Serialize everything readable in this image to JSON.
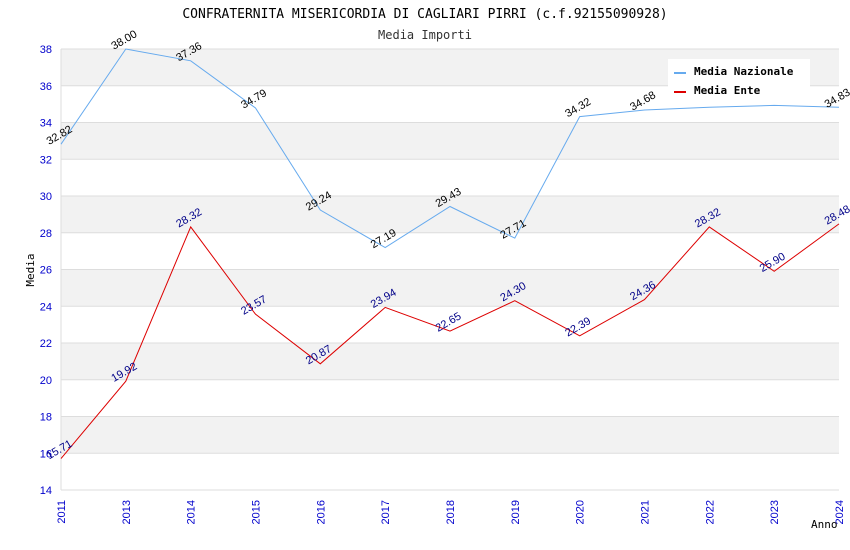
{
  "chart_data": {
    "type": "line",
    "title": "CONFRATERNITA MISERICORDIA DI CAGLIARI PIRRI (c.f.92155090928)",
    "subtitle": "Media Importi",
    "xlabel": "Anno",
    "ylabel": "Media",
    "ylim": [
      14,
      38
    ],
    "yticks": [
      14,
      16,
      18,
      20,
      22,
      24,
      26,
      28,
      30,
      32,
      34,
      36,
      38
    ],
    "categories": [
      "2011",
      "2013",
      "2014",
      "2015",
      "2016",
      "2017",
      "2018",
      "2019",
      "2020",
      "2021",
      "2022",
      "2023",
      "2024"
    ],
    "grid": true,
    "legend_position": "top-right",
    "series": [
      {
        "name": "Media Nazionale",
        "color": "#66aaee",
        "label_color": "#000000",
        "values": [
          32.82,
          38.0,
          37.36,
          34.79,
          29.24,
          27.19,
          29.43,
          27.71,
          34.32,
          34.68,
          34.83,
          34.93,
          34.83
        ],
        "labels": [
          "32.82",
          "38.00",
          "37.36",
          "34.79",
          "29.24",
          "27.19",
          "29.43",
          "27.71",
          "34.32",
          "34.68",
          null,
          null,
          "34.83"
        ]
      },
      {
        "name": "Media Ente",
        "color": "#dd0000",
        "label_color": "#000088",
        "values": [
          15.71,
          19.92,
          28.32,
          23.57,
          20.87,
          23.94,
          22.65,
          24.3,
          22.39,
          24.36,
          28.32,
          25.9,
          28.48
        ],
        "labels": [
          "15.71",
          "19.92",
          "28.32",
          "23.57",
          "20.87",
          "23.94",
          "22.65",
          "24.30",
          "22.39",
          "24.36",
          "28.32",
          "25.90",
          "28.48"
        ]
      }
    ]
  }
}
